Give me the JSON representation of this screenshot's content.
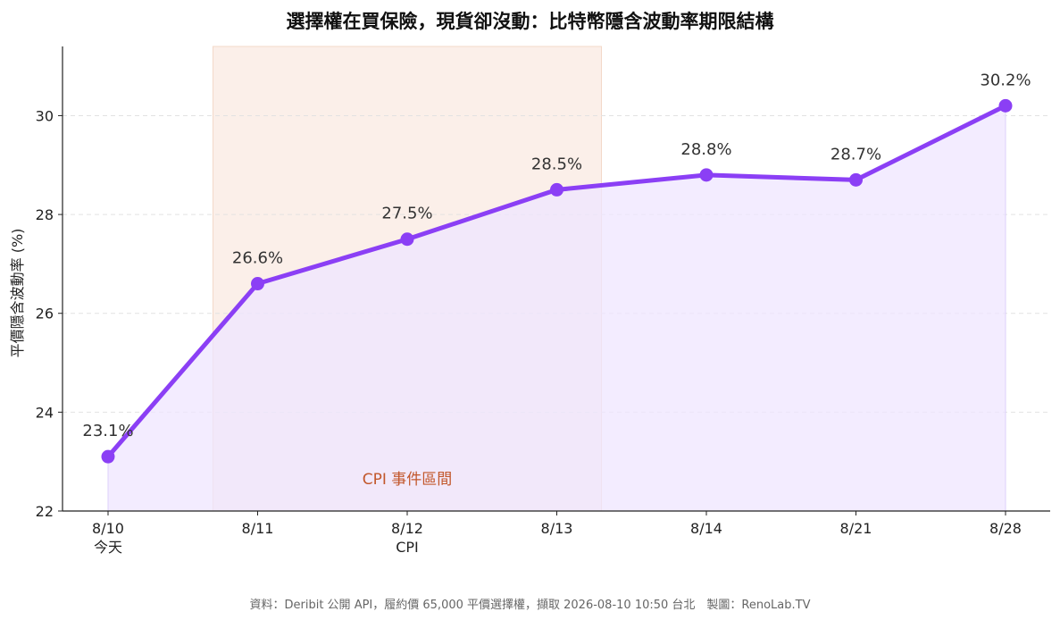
{
  "chart_data": {
    "type": "line",
    "title": "選擇權在買保險，現貨卻沒動：比特幣隱含波動率期限結構",
    "xlabel": "",
    "ylabel": "平價隱含波動率 (%)",
    "categories": [
      "8/10",
      "8/11",
      "8/12",
      "8/13",
      "8/14",
      "8/21",
      "8/28"
    ],
    "category_sublabels": [
      "今天",
      "",
      "CPI",
      "",
      "",
      "",
      ""
    ],
    "series": [
      {
        "values": [
          23.1,
          26.6,
          27.5,
          28.5,
          28.8,
          28.7,
          30.2
        ],
        "data_labels": [
          "23.1%",
          "26.6%",
          "27.5%",
          "28.5%",
          "28.8%",
          "28.7%",
          "30.2%"
        ]
      }
    ],
    "ylim": [
      22,
      31.4
    ],
    "yticks": [
      22,
      24,
      26,
      28,
      30
    ],
    "grid": "horizontal dashed",
    "area_fill": true,
    "event_band": {
      "label": "CPI 事件區間",
      "from_category": "8/11",
      "to_category": "8/13"
    },
    "colors": {
      "line": "#8b3ff5",
      "area": "#efe5ff",
      "band": "#fbefe9",
      "band_text": "#c2572b"
    }
  },
  "footer": "資料：Deribit 公開 API，履約價 65,000 平價選擇權，擷取 2026-08-10 10:50 台北　製圖：RenoLab.TV"
}
